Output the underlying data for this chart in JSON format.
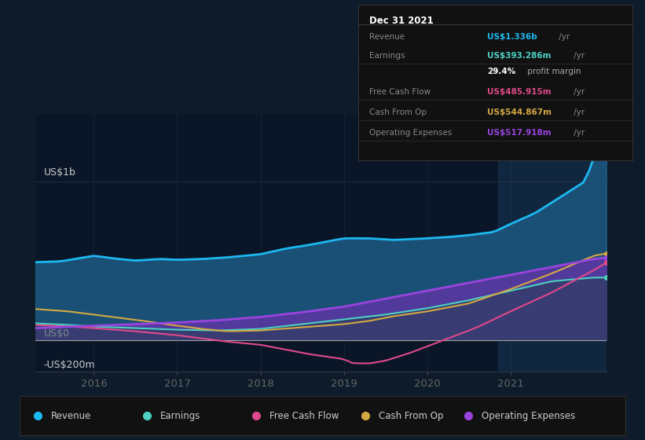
{
  "bg_color": "#0d1b2a",
  "plot_bg_color": "#0a1628",
  "ylabel_top": "US$1b",
  "ylabel_bottom": "-US$200m",
  "ylabel_zero": "US$0",
  "x_labels": [
    "2016",
    "2017",
    "2018",
    "2019",
    "2020",
    "2021"
  ],
  "x_ticks": [
    2016,
    2017,
    2018,
    2019,
    2020,
    2021
  ],
  "xlim": [
    2015.3,
    2022.15
  ],
  "ylim": [
    -200,
    1420
  ],
  "revenue_color": "#1cb8f0",
  "revenue_fill": "#1a3a5c",
  "earnings_color": "#4dd0c4",
  "fcf_color": "#e0498a",
  "cashfromop_color": "#d4a843",
  "opex_color": "#9944dd",
  "opex_fill": "#6633aa",
  "highlight_x_start": 2020.85,
  "highlight_x_end": 2022.2,
  "info_box_title": "Dec 31 2021",
  "info_rows": [
    {
      "label": "Revenue",
      "value": "US$1.336b",
      "suffix": " /yr",
      "value_color": "#1cb8f0",
      "has_divider": true
    },
    {
      "label": "Earnings",
      "value": "US$393.286m",
      "suffix": " /yr",
      "value_color": "#4dd0c4",
      "has_divider": false
    },
    {
      "label": "",
      "value": "29.4%",
      "suffix": " profit margin",
      "value_color": "#ffffff",
      "suffix_color": "#aaaaaa",
      "has_divider": true
    },
    {
      "label": "Free Cash Flow",
      "value": "US$485.915m",
      "suffix": " /yr",
      "value_color": "#e0498a",
      "has_divider": true
    },
    {
      "label": "Cash From Op",
      "value": "US$544.867m",
      "suffix": " /yr",
      "value_color": "#d4a843",
      "has_divider": true
    },
    {
      "label": "Operating Expenses",
      "value": "US$517.918m",
      "suffix": " /yr",
      "value_color": "#9944dd",
      "has_divider": false
    }
  ],
  "legend_items": [
    {
      "label": "Revenue",
      "color": "#1cb8f0"
    },
    {
      "label": "Earnings",
      "color": "#4dd0c4"
    },
    {
      "label": "Free Cash Flow",
      "color": "#e0498a"
    },
    {
      "label": "Cash From Op",
      "color": "#d4a843"
    },
    {
      "label": "Operating Expenses",
      "color": "#9944dd"
    }
  ]
}
